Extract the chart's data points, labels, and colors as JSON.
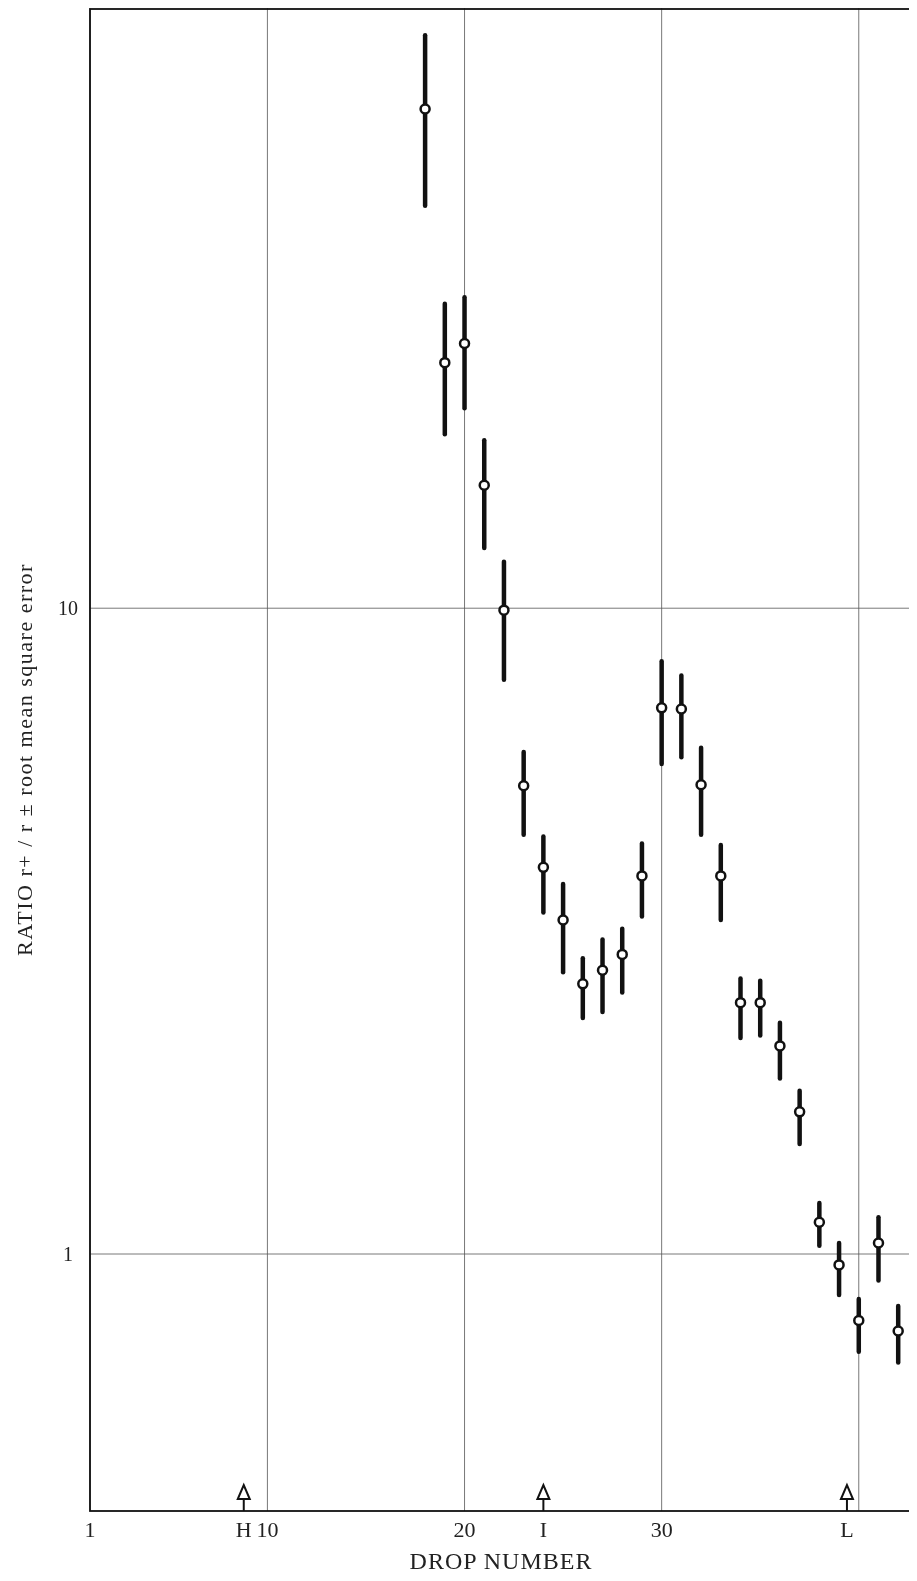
{
  "chart_data": {
    "type": "scatter",
    "xlabel": "DROP NUMBER",
    "ylabel": "RATIO r+ / r ± root mean square error",
    "log": "y",
    "grid": true,
    "marker": "circle",
    "color": "#111111",
    "xlim": [
      1,
      42.7
    ],
    "xticks": [
      1,
      {
        "value": 8.8,
        "label": "H"
      },
      10,
      20,
      {
        "value": 24,
        "label": "I"
      },
      30,
      {
        "value": 39.4,
        "label": "L"
      },
      {
        "value": 40,
        "label": null
      }
    ],
    "ylim": [
      0.4,
      85
    ],
    "yticks": [
      1,
      10
    ],
    "x": [
      18,
      19,
      20,
      21,
      22,
      23,
      24,
      25,
      26,
      27,
      28,
      29,
      30,
      31,
      32,
      33,
      34,
      35,
      36,
      37,
      38,
      39,
      40,
      41,
      42
    ],
    "values": [
      59.3,
      24.0,
      25.7,
      15.5,
      9.93,
      5.31,
      3.97,
      3.29,
      2.62,
      2.75,
      2.91,
      3.85,
      7.01,
      6.98,
      5.33,
      3.85,
      2.45,
      2.45,
      2.1,
      1.66,
      1.12,
      0.962,
      0.789,
      1.04,
      0.76
    ],
    "errors": [
      [
        42.0,
        77.1
      ],
      [
        18.6,
        29.6
      ],
      [
        20.4,
        30.3
      ],
      [
        12.4,
        18.2
      ],
      [
        7.75,
        11.8
      ],
      [
        4.46,
        5.99
      ],
      [
        3.38,
        4.43
      ],
      [
        2.73,
        3.74
      ],
      [
        2.32,
        2.87
      ],
      [
        2.37,
        3.07
      ],
      [
        2.54,
        3.19
      ],
      [
        3.33,
        4.32
      ],
      [
        5.74,
        8.28
      ],
      [
        5.88,
        7.87
      ],
      [
        4.46,
        6.08
      ],
      [
        3.29,
        4.3
      ],
      [
        2.16,
        2.67
      ],
      [
        2.18,
        2.65
      ],
      [
        1.87,
        2.28
      ],
      [
        1.48,
        1.79
      ],
      [
        1.03,
        1.2
      ],
      [
        0.864,
        1.04
      ],
      [
        0.706,
        0.852
      ],
      [
        0.91,
        1.14
      ],
      [
        0.679,
        0.831
      ]
    ]
  }
}
